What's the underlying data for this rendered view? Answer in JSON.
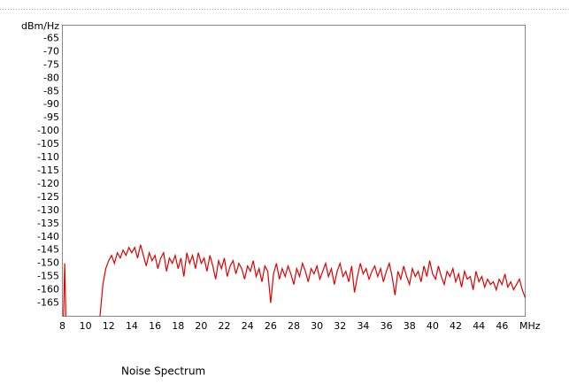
{
  "chart_data": {
    "type": "line",
    "title": "Noise Spectrum",
    "y_label": "dBm/Hz",
    "x_label": "MHz",
    "xlim": [
      8,
      48
    ],
    "ylim": [
      -170,
      -60
    ],
    "xticks": [
      8,
      10,
      12,
      14,
      16,
      18,
      20,
      22,
      24,
      26,
      28,
      30,
      32,
      34,
      36,
      38,
      40,
      42,
      44,
      46
    ],
    "yticks": [
      -65,
      -70,
      -75,
      -80,
      -85,
      -90,
      -95,
      -100,
      -105,
      -110,
      -115,
      -120,
      -125,
      -130,
      -135,
      -140,
      -145,
      -150,
      -155,
      -160,
      -165
    ],
    "grid": true,
    "series": [
      {
        "color": "#e00000",
        "x": [
          8.1,
          8.2,
          8.3,
          8.4,
          11.25,
          11.5,
          11.75,
          12,
          12.25,
          12.5,
          12.75,
          13,
          13.25,
          13.5,
          13.75,
          14,
          14.25,
          14.5,
          14.75,
          15,
          15.25,
          15.5,
          15.75,
          16,
          16.25,
          16.5,
          16.75,
          17,
          17.25,
          17.5,
          17.75,
          18,
          18.25,
          18.5,
          18.75,
          19,
          19.25,
          19.5,
          19.75,
          20,
          20.25,
          20.5,
          20.75,
          21,
          21.25,
          21.5,
          21.75,
          22,
          22.25,
          22.5,
          22.75,
          23,
          23.25,
          23.5,
          23.75,
          24,
          24.25,
          24.5,
          24.75,
          25,
          25.25,
          25.5,
          25.75,
          26,
          26.25,
          26.5,
          26.75,
          27,
          27.25,
          27.5,
          27.75,
          28,
          28.25,
          28.5,
          28.75,
          29,
          29.25,
          29.5,
          29.75,
          30,
          30.25,
          30.5,
          30.75,
          31,
          31.25,
          31.5,
          31.75,
          32,
          32.25,
          32.5,
          32.75,
          33,
          33.25,
          33.5,
          33.75,
          34,
          34.25,
          34.5,
          34.75,
          35,
          35.25,
          35.5,
          35.75,
          36,
          36.25,
          36.5,
          36.75,
          37,
          37.25,
          37.5,
          37.75,
          38,
          38.25,
          38.5,
          38.75,
          39,
          39.25,
          39.5,
          39.75,
          40,
          40.25,
          40.5,
          40.75,
          41,
          41.25,
          41.5,
          41.75,
          42,
          42.25,
          42.5,
          42.75,
          43,
          43.25,
          43.5,
          43.75,
          44,
          44.25,
          44.5,
          44.75,
          45,
          45.25,
          45.5,
          45.75,
          46,
          46.25,
          46.5,
          46.75,
          47,
          47.25,
          47.5,
          47.75,
          48
        ],
        "values": [
          -170,
          -150,
          -170,
          null,
          -170,
          -158,
          -152,
          -149,
          -147,
          -150,
          -146,
          -148,
          -145,
          -147,
          -144,
          -146,
          -144,
          -148,
          -143,
          -147,
          -151,
          -146,
          -149,
          -147,
          -152,
          -148,
          -146,
          -153,
          -148,
          -150,
          -147,
          -152,
          -148,
          -155,
          -146,
          -150,
          -147,
          -152,
          -146,
          -150,
          -148,
          -153,
          -147,
          -151,
          -156,
          -149,
          -152,
          -148,
          -155,
          -151,
          -149,
          -154,
          -150,
          -152,
          -156,
          -151,
          -153,
          -149,
          -155,
          -152,
          -157,
          -151,
          -153,
          -165,
          -154,
          -150,
          -156,
          -152,
          -155,
          -151,
          -154,
          -158,
          -152,
          -155,
          -150,
          -153,
          -157,
          -152,
          -154,
          -151,
          -156,
          -153,
          -150,
          -155,
          -152,
          -158,
          -153,
          -150,
          -155,
          -153,
          -157,
          -151,
          -161,
          -155,
          -150,
          -154,
          -152,
          -156,
          -153,
          -151,
          -155,
          -152,
          -157,
          -153,
          -150,
          -155,
          -162,
          -153,
          -156,
          -151,
          -155,
          -158,
          -152,
          -155,
          -153,
          -157,
          -151,
          -155,
          -149,
          -154,
          -156,
          -151,
          -155,
          -158,
          -153,
          -155,
          -152,
          -157,
          -154,
          -159,
          -153,
          -156,
          -155,
          -160,
          -153,
          -157,
          -155,
          -159,
          -156,
          -158,
          -157,
          -160,
          -156,
          -158,
          -154,
          -159,
          -157,
          -160,
          -158,
          -156,
          -160,
          -163
        ]
      }
    ]
  }
}
